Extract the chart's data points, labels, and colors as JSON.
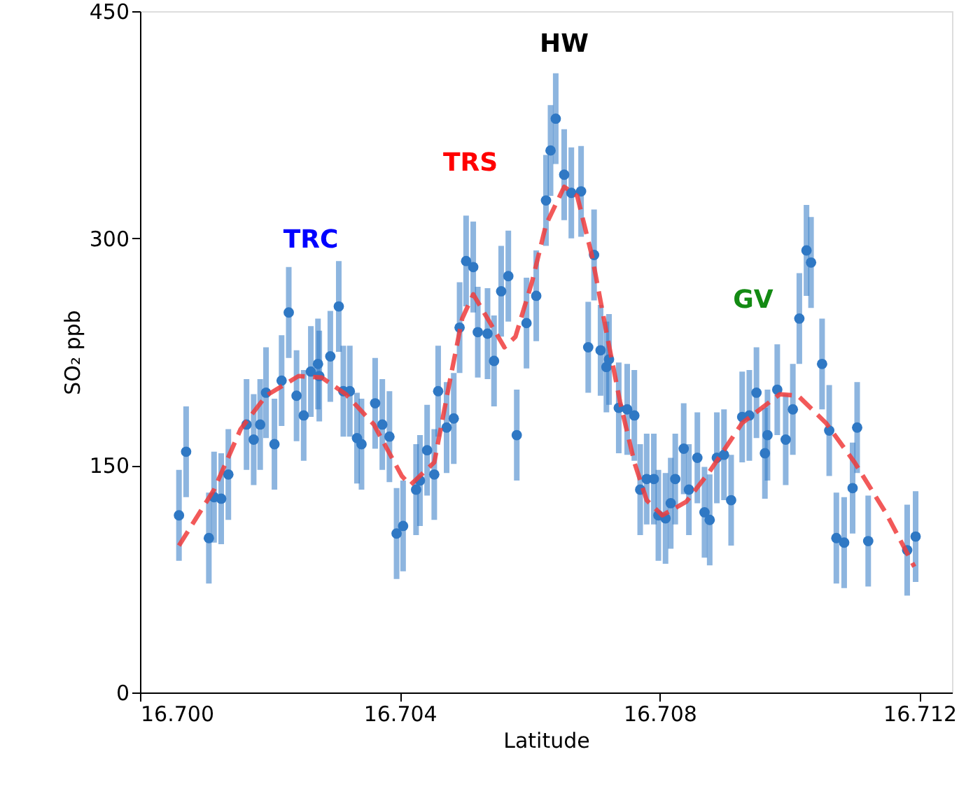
{
  "chart_data": {
    "type": "scatter",
    "xlabel": "Latitude",
    "ylabel": "SO₂ ppb",
    "xlim": [
      16.7,
      16.7125
    ],
    "xticks": [
      {
        "value": 16.7,
        "label": "16.700"
      },
      {
        "value": 16.704,
        "label": "16.704"
      },
      {
        "value": 16.708,
        "label": "16.708"
      },
      {
        "value": 16.712,
        "label": "16.712"
      }
    ],
    "ylim": [
      0,
      450
    ],
    "yticks": [
      0,
      150,
      300,
      450
    ],
    "grid": false,
    "series": [
      {
        "color": "#2f78c4",
        "marker": "circle",
        "x": [
          16.7006,
          16.70071,
          16.70106,
          16.70114,
          16.70125,
          16.70136,
          16.70164,
          16.70175,
          16.70185,
          16.70194,
          16.70207,
          16.70218,
          16.70229,
          16.70241,
          16.70252,
          16.70263,
          16.70274,
          16.70276,
          16.70293,
          16.70306,
          16.70313,
          16.70323,
          16.70334,
          16.70341,
          16.70362,
          16.70373,
          16.70384,
          16.70395,
          16.70405,
          16.70425,
          16.70431,
          16.70442,
          16.70453,
          16.70459,
          16.70472,
          16.70483,
          16.70492,
          16.70502,
          16.70513,
          16.7052,
          16.70535,
          16.70545,
          16.70556,
          16.70567,
          16.7058,
          16.70595,
          16.7061,
          16.70625,
          16.70632,
          16.7064,
          16.70653,
          16.70664,
          16.70679,
          16.70699,
          16.7069,
          16.70709,
          16.70718,
          16.70722,
          16.70737,
          16.7075,
          16.70761,
          16.7077,
          16.7078,
          16.70791,
          16.70798,
          16.70809,
          16.70817,
          16.70824,
          16.70837,
          16.70845,
          16.70858,
          16.70869,
          16.70877,
          16.70888,
          16.70899,
          16.7091,
          16.70927,
          16.70938,
          16.70949,
          16.70962,
          16.70966,
          16.70981,
          16.70994,
          16.71005,
          16.71015,
          16.71026,
          16.71033,
          16.7105,
          16.71061,
          16.71072,
          16.71084,
          16.71097,
          16.71104,
          16.71121,
          16.71181,
          16.71194
        ],
        "values": [
          117,
          159,
          102,
          129,
          128,
          144,
          177,
          167,
          177,
          198,
          164,
          206,
          251,
          196,
          183,
          212,
          217,
          209,
          222,
          255,
          199,
          199,
          168,
          164,
          191,
          177,
          169,
          105,
          110,
          134,
          140,
          160,
          144,
          199,
          175,
          181,
          241,
          285,
          281,
          238,
          237,
          219,
          265,
          275,
          170,
          244,
          262,
          325,
          358,
          379,
          342,
          330,
          331,
          289,
          228,
          226,
          215,
          220,
          188,
          187,
          183,
          134,
          141,
          141,
          117,
          115,
          125,
          141,
          161,
          134,
          155,
          119,
          114,
          155,
          157,
          127,
          182,
          183,
          198,
          158,
          170,
          200,
          167,
          187,
          247,
          292,
          284,
          217,
          173,
          102,
          99,
          135,
          175,
          100,
          94,
          103
        ],
        "errors": [
          30,
          30,
          30,
          30,
          30,
          30,
          30,
          30,
          30,
          30,
          30,
          30,
          30,
          30,
          30,
          30,
          30,
          30,
          30,
          30,
          30,
          30,
          30,
          30,
          30,
          30,
          30,
          30,
          30,
          30,
          30,
          30,
          30,
          30,
          30,
          30,
          30,
          30,
          30,
          30,
          30,
          30,
          30,
          30,
          30,
          30,
          30,
          30,
          30,
          30,
          30,
          30,
          30,
          30,
          30,
          30,
          30,
          30,
          30,
          30,
          30,
          30,
          30,
          30,
          30,
          30,
          30,
          30,
          30,
          30,
          30,
          30,
          30,
          30,
          30,
          30,
          30,
          30,
          30,
          30,
          30,
          30,
          30,
          30,
          30,
          30,
          30,
          30,
          30,
          30,
          30,
          30,
          30,
          30,
          30,
          30
        ]
      },
      {
        "type": "line",
        "color": "#f03c3c",
        "line_style": "dashed",
        "marker": "none",
        "x": [
          16.7006,
          16.70114,
          16.70155,
          16.70194,
          16.70244,
          16.7028,
          16.70317,
          16.7036,
          16.70403,
          16.70416,
          16.70453,
          16.70478,
          16.70496,
          16.70513,
          16.70535,
          16.70561,
          16.70578,
          16.70604,
          16.70625,
          16.70653,
          16.70673,
          16.70696,
          16.70718,
          16.70739,
          16.70761,
          16.7078,
          16.70804,
          16.70841,
          16.70877,
          16.70927,
          16.70985,
          16.71013,
          16.71056,
          16.711,
          16.71149,
          16.71192
        ],
        "values": [
          97,
          134,
          174,
          196,
          209,
          208,
          197,
          177,
          143,
          137,
          152,
          208,
          247,
          263,
          247,
          228,
          235,
          272,
          309,
          334,
          328,
          288,
          238,
          192,
          152,
          127,
          117,
          126,
          146,
          178,
          197,
          196,
          178,
          152,
          118,
          83
        ]
      }
    ],
    "annotations": [
      "TRC",
      "TRS",
      "HW",
      "GV"
    ]
  }
}
